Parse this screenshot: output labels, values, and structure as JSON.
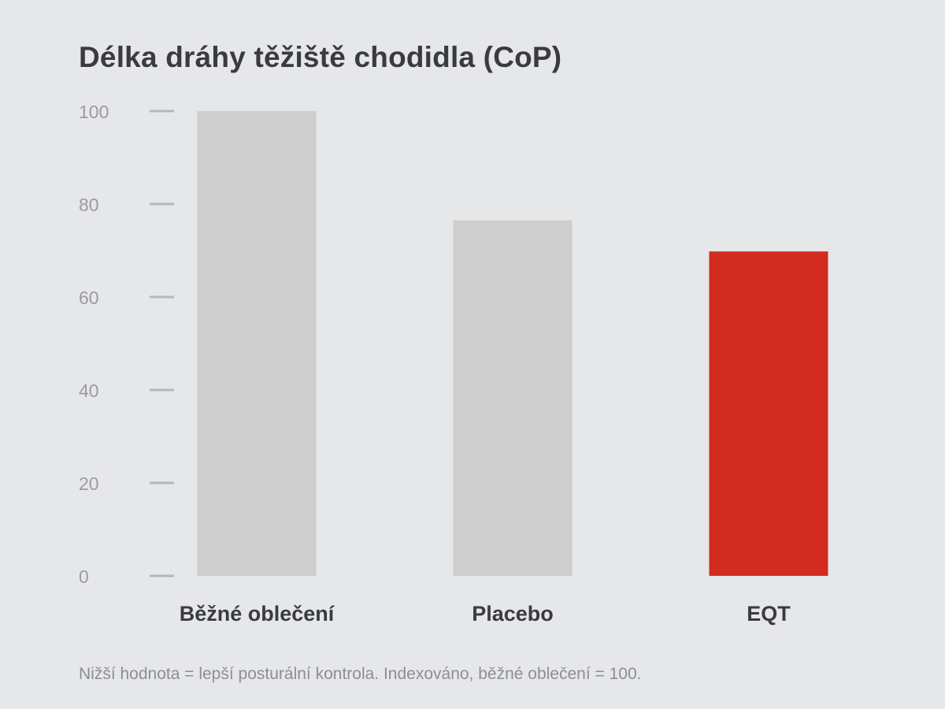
{
  "chart_data": {
    "type": "bar",
    "title": "Délka dráhy těžiště chodidla (CoP)",
    "categories": [
      "Běžné oblečení",
      "Placebo",
      "EQT"
    ],
    "values": [
      100,
      76.5,
      69.8
    ],
    "bar_colors": [
      "#cececf",
      "#cececf",
      "#d22b20"
    ],
    "ylim": [
      0,
      100
    ],
    "yticks": [
      0,
      20,
      40,
      60,
      80,
      100
    ],
    "xlabel": "",
    "ylabel": "",
    "grid": false,
    "legend": "none"
  },
  "footnote": "Nižší hodnota = lepší posturální kontrola. Indexováno, běžné oblečení = 100."
}
